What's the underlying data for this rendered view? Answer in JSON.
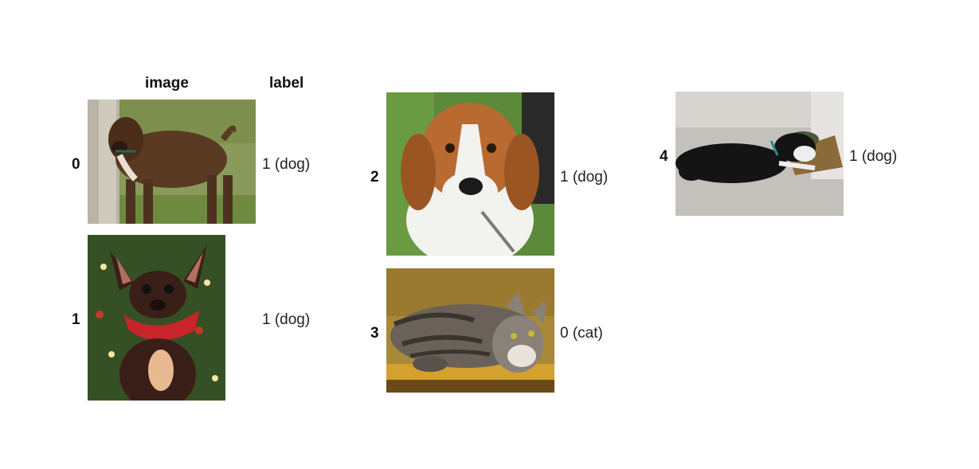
{
  "table": {
    "headers": {
      "image": "image",
      "label": "label"
    }
  },
  "rows": [
    {
      "index": "0",
      "label": "1 (dog)",
      "image": "brindle-boxer-dog-photo"
    },
    {
      "index": "1",
      "label": "1 (dog)",
      "image": "chihuahua-with-red-bandana-photo"
    },
    {
      "index": "2",
      "label": "1 (dog)",
      "image": "beagle-face-photo"
    },
    {
      "index": "3",
      "label": "0 (cat)",
      "image": "tabby-cat-lying-on-shelf-photo"
    },
    {
      "index": "4",
      "label": "1 (dog)",
      "image": "black-white-dog-on-floor-photo"
    }
  ],
  "colors": {
    "text": "#222222",
    "header_text": "#111111",
    "background": "#ffffff"
  }
}
